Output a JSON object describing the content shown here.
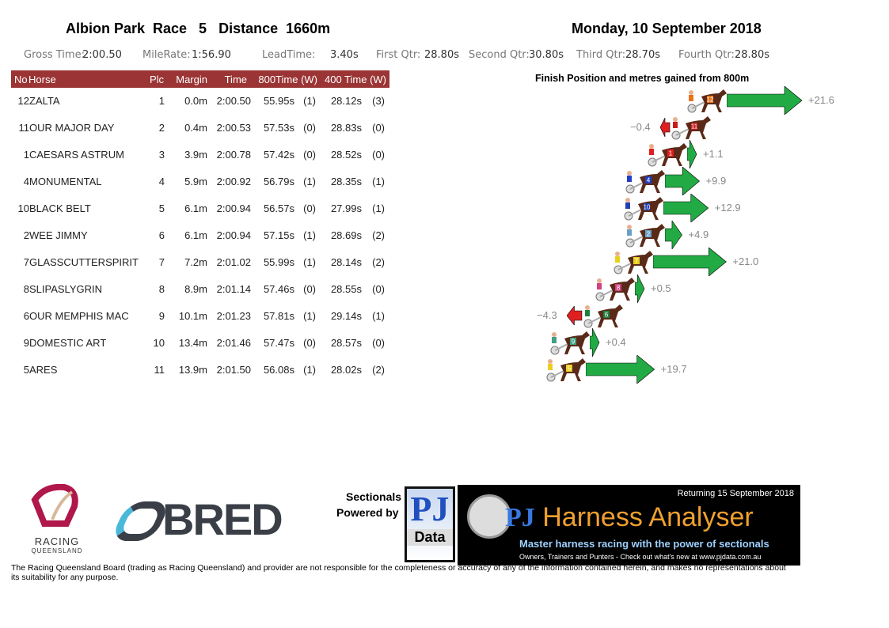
{
  "header": {
    "title": "Albion Park  Race   5   Distance  1660m",
    "date": "Monday, 10 September 2018"
  },
  "stats": [
    {
      "label": "Gross Time:",
      "value": "2:00.50"
    },
    {
      "label": "MileRate:",
      "value": "1:56.90"
    },
    {
      "label": "LeadTime:",
      "value": "3.40s"
    },
    {
      "label": "First Qtr:",
      "value": "28.80s"
    },
    {
      "label": "Second Qtr:",
      "value": "30.80s"
    },
    {
      "label": "Third Qtr:",
      "value": "28.70s"
    },
    {
      "label": "Fourth Qtr:",
      "value": "28.80s"
    }
  ],
  "table": {
    "headers": [
      "No",
      "Horse",
      "Plc",
      "Margin",
      "Time",
      "800Time (W)",
      "400 Time (W)"
    ],
    "rows": [
      [
        "12",
        "ZALTA",
        "1",
        "0.0m",
        "2:00.50",
        "55.95s",
        "(1)",
        "28.12s",
        "(3)"
      ],
      [
        "11",
        "OUR MAJOR DAY",
        "2",
        "0.4m",
        "2:00.53",
        "57.53s",
        "(0)",
        "28.83s",
        "(0)"
      ],
      [
        "1",
        "CAESARS ASTRUM",
        "3",
        "3.9m",
        "2:00.78",
        "57.42s",
        "(0)",
        "28.52s",
        "(0)"
      ],
      [
        "4",
        "MONUMENTAL",
        "4",
        "5.9m",
        "2:00.92",
        "56.79s",
        "(1)",
        "28.35s",
        "(1)"
      ],
      [
        "10",
        "BLACK BELT",
        "5",
        "6.1m",
        "2:00.94",
        "56.57s",
        "(0)",
        "27.99s",
        "(1)"
      ],
      [
        "2",
        "WEE JIMMY",
        "6",
        "6.1m",
        "2:00.94",
        "57.15s",
        "(1)",
        "28.69s",
        "(2)"
      ],
      [
        "7",
        "GLASSCUTTERSPIRIT",
        "7",
        "7.2m",
        "2:01.02",
        "55.99s",
        "(1)",
        "28.14s",
        "(2)"
      ],
      [
        "8",
        "SLIPASLYGRIN",
        "8",
        "8.9m",
        "2:01.14",
        "57.46s",
        "(0)",
        "28.55s",
        "(0)"
      ],
      [
        "6",
        "OUR MEMPHIS MAC",
        "9",
        "10.1m",
        "2:01.23",
        "57.81s",
        "(1)",
        "29.14s",
        "(1)"
      ],
      [
        "9",
        "DOMESTIC ART",
        "10",
        "13.4m",
        "2:01.46",
        "57.47s",
        "(0)",
        "28.57s",
        "(0)"
      ],
      [
        "5",
        "ARES",
        "11",
        "13.9m",
        "2:01.50",
        "56.08s",
        "(1)",
        "28.02s",
        "(2)"
      ]
    ]
  },
  "chart": {
    "title": "Finish Position and metres gained from 800m",
    "gains": [
      {
        "no": "12",
        "label": "+21.6",
        "value": 21.6,
        "color": "#e8731a"
      },
      {
        "no": "11",
        "label": "−0.4",
        "value": -0.4,
        "color": "#c81e1e"
      },
      {
        "no": "1",
        "label": "+1.1",
        "value": 1.1,
        "color": "#e02020"
      },
      {
        "no": "4",
        "label": "+9.9",
        "value": 9.9,
        "color": "#1f3fc8"
      },
      {
        "no": "10",
        "label": "+12.9",
        "value": 12.9,
        "color": "#2040b0"
      },
      {
        "no": "2",
        "label": "+4.9",
        "value": 4.9,
        "color": "#6aa0c8"
      },
      {
        "no": "7",
        "label": "+21.0",
        "value": 21.0,
        "color": "#e8d020"
      },
      {
        "no": "8",
        "label": "+0.5",
        "value": 0.5,
        "color": "#d04080"
      },
      {
        "no": "6",
        "label": "−4.3",
        "value": -4.3,
        "color": "#208040"
      },
      {
        "no": "9",
        "label": "+0.4",
        "value": 0.4,
        "color": "#40a080"
      },
      {
        "no": "5",
        "label": "+19.7",
        "value": 19.7,
        "color": "#e8d020"
      }
    ],
    "gain_color": "#22aa44",
    "loss_color": "#e02020"
  },
  "logos": {
    "rq": "RACING QUEENSLAND",
    "bred": "QBRED",
    "sectionals": "Sectionals",
    "powered": "Powered by",
    "pj": "PJ",
    "pjdata": "Data",
    "returning": "Returning 15 September 2018",
    "ha": "Harness Analyser",
    "tagline": "Master harness racing with the power of sectionals",
    "sub": "Owners, Trainers and Punters - Check out what's new at www.pjdata.com.au"
  },
  "footer": "The Racing Queensland Board (trading as Racing Queensland) and provider are not responsible for the completeness or accuracy of any of the information contained herein, and makes no representations about its suitability for any purpose."
}
